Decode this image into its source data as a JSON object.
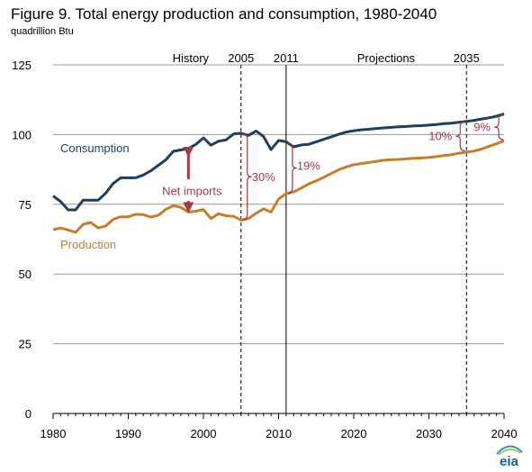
{
  "title": "Figure 9. Total energy production and consumption, 1980-2040",
  "subtitle": "quadrillion Btu",
  "logo_text": "eia",
  "colors": {
    "consumption": "#1f3f5a",
    "production": "#c67d2c",
    "annotation": "#a33a4a",
    "grid": "#9a9a9a"
  },
  "chart_data": {
    "type": "line",
    "title": "Figure 9. Total energy production and consumption, 1980-2040",
    "ylabel": "quadrillion Btu",
    "xlim": [
      1980,
      2040
    ],
    "ylim": [
      0,
      125
    ],
    "xticks": [
      1980,
      1990,
      2000,
      2010,
      2020,
      2030,
      2040
    ],
    "yticks": [
      0,
      25,
      50,
      75,
      100,
      125
    ],
    "grid": "horizontal",
    "legend": "none (inline labels)",
    "series": [
      {
        "name": "Consumption",
        "color": "#1f3f5a",
        "x": [
          1980,
          1981,
          1982,
          1983,
          1984,
          1985,
          1986,
          1987,
          1988,
          1989,
          1990,
          1991,
          1992,
          1993,
          1994,
          1995,
          1996,
          1997,
          1998,
          1999,
          2000,
          2001,
          2002,
          2003,
          2004,
          2005,
          2006,
          2007,
          2008,
          2009,
          2010,
          2011,
          2012,
          2013,
          2014,
          2015,
          2016,
          2017,
          2018,
          2019,
          2020,
          2021,
          2022,
          2023,
          2024,
          2025,
          2026,
          2027,
          2028,
          2029,
          2030,
          2031,
          2032,
          2033,
          2034,
          2035,
          2036,
          2037,
          2038,
          2039,
          2040
        ],
        "values": [
          78,
          76,
          73,
          73,
          76.5,
          76.5,
          76.5,
          79,
          82.5,
          84.5,
          84.5,
          84.5,
          85.5,
          87,
          89,
          91,
          94,
          94.5,
          95,
          96.5,
          98.8,
          96.2,
          97.6,
          98.1,
          100.2,
          100.5,
          99.7,
          101.3,
          99.3,
          94.6,
          97.9,
          97.4,
          95.6,
          96.3,
          96.5,
          97.4,
          98.3,
          99.2,
          100.1,
          100.9,
          101.4,
          101.7,
          101.9,
          102.2,
          102.4,
          102.6,
          102.8,
          102.9,
          103.1,
          103.2,
          103.4,
          103.6,
          103.9,
          104.1,
          104.4,
          104.7,
          105.1,
          105.6,
          106.0,
          106.6,
          107.4
        ]
      },
      {
        "name": "Production",
        "color": "#c67d2c",
        "x": [
          1980,
          1981,
          1982,
          1983,
          1984,
          1985,
          1986,
          1987,
          1988,
          1989,
          1990,
          1991,
          1992,
          1993,
          1994,
          1995,
          1996,
          1997,
          1998,
          1999,
          2000,
          2001,
          2002,
          2003,
          2004,
          2005,
          2006,
          2007,
          2008,
          2009,
          2010,
          2011,
          2012,
          2013,
          2014,
          2015,
          2016,
          2017,
          2018,
          2019,
          2020,
          2021,
          2022,
          2023,
          2024,
          2025,
          2026,
          2027,
          2028,
          2029,
          2030,
          2031,
          2032,
          2033,
          2034,
          2035,
          2036,
          2037,
          2038,
          2039,
          2040
        ],
        "values": [
          65.9,
          66.5,
          65.8,
          65.0,
          67.8,
          68.5,
          66.5,
          67.2,
          69.6,
          70.5,
          70.5,
          71.4,
          71.3,
          70.4,
          71.1,
          73.2,
          74.5,
          73.9,
          72.2,
          72.5,
          73.1,
          69.9,
          71.6,
          70.9,
          70.7,
          69.3,
          69.9,
          71.8,
          73.4,
          72.2,
          76.9,
          78.8,
          79.4,
          80.8,
          82.3,
          83.4,
          84.7,
          86.0,
          87.4,
          88.4,
          89.2,
          89.6,
          90.0,
          90.4,
          90.8,
          91.0,
          91.1,
          91.3,
          91.5,
          91.6,
          91.8,
          92.1,
          92.5,
          92.8,
          93.3,
          93.7,
          94.1,
          94.8,
          95.8,
          96.7,
          97.8
        ]
      }
    ],
    "vlines": [
      {
        "x": 2005,
        "label": "2005",
        "style": "dashed"
      },
      {
        "x": 2011,
        "label": "2011",
        "style": "solid"
      },
      {
        "x": 2035,
        "label": "2035",
        "style": "dashed"
      }
    ],
    "period_labels": [
      "History",
      "Projections"
    ],
    "annotations": {
      "series_label_consumption": "Consumption",
      "series_label_production": "Production",
      "net_imports": "Net imports",
      "gap_2005": "30%",
      "gap_2011": "19%",
      "gap_projection": "10%",
      "gap_2040": "9%"
    }
  }
}
